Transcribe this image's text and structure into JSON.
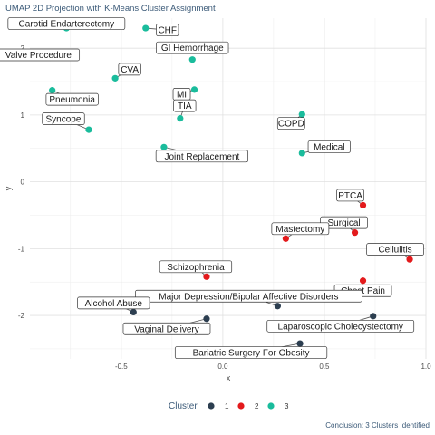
{
  "chart_data": {
    "type": "scatter",
    "title": "UMAP 2D Projection with K-Means Cluster Assignment",
    "xlabel": "x",
    "ylabel": "y",
    "xlim": [
      -0.95,
      1.0
    ],
    "ylim": [
      -2.65,
      2.45
    ],
    "x_ticks": [
      -0.5,
      0.0,
      0.5,
      1.0
    ],
    "y_ticks": [
      -2,
      -1,
      0,
      1,
      2
    ],
    "x_tick_labels": [
      "-0.5",
      "0.0",
      "0.5",
      "1.0"
    ],
    "y_tick_labels": [
      "-2",
      "-1",
      "0",
      "1",
      "2"
    ],
    "grid": true,
    "legend": {
      "title": "Cluster",
      "position": "bottom",
      "entries": [
        {
          "label": "1",
          "color": "#2c3e50"
        },
        {
          "label": "2",
          "color": "#e31a1c"
        },
        {
          "label": "3",
          "color": "#1abc9c"
        }
      ]
    },
    "points": [
      {
        "label": "Carotid Endarterectomy",
        "x": -0.77,
        "y": 2.3,
        "cluster": "3"
      },
      {
        "label": "CHF",
        "x": -0.38,
        "y": 2.3,
        "cluster": "3"
      },
      {
        "label": "Valve Procedure",
        "x": -0.85,
        "y": 1.86,
        "cluster": "3"
      },
      {
        "label": "GI Hemorrhage",
        "x": -0.15,
        "y": 1.83,
        "cluster": "3"
      },
      {
        "label": "CVA",
        "x": -0.53,
        "y": 1.55,
        "cluster": "3"
      },
      {
        "label": "Pneumonia",
        "x": -0.84,
        "y": 1.37,
        "cluster": "3"
      },
      {
        "label": "MI",
        "x": -0.14,
        "y": 1.38,
        "cluster": "3"
      },
      {
        "label": "Syncope",
        "x": -0.66,
        "y": 0.78,
        "cluster": "3"
      },
      {
        "label": "TIA",
        "x": -0.21,
        "y": 0.95,
        "cluster": "3"
      },
      {
        "label": "COPD",
        "x": 0.39,
        "y": 1.01,
        "cluster": "3"
      },
      {
        "label": "Joint Replacement",
        "x": -0.29,
        "y": 0.52,
        "cluster": "3"
      },
      {
        "label": "Medical",
        "x": 0.39,
        "y": 0.43,
        "cluster": "3"
      },
      {
        "label": "PTCA",
        "x": 0.69,
        "y": -0.35,
        "cluster": "2"
      },
      {
        "label": "Surgical",
        "x": 0.65,
        "y": -0.76,
        "cluster": "2"
      },
      {
        "label": "Mastectomy",
        "x": 0.31,
        "y": -0.85,
        "cluster": "2"
      },
      {
        "label": "Cellulitis",
        "x": 0.92,
        "y": -1.16,
        "cluster": "2"
      },
      {
        "label": "Schizophrenia",
        "x": -0.08,
        "y": -1.42,
        "cluster": "2"
      },
      {
        "label": "Chest Pain",
        "x": 0.69,
        "y": -1.48,
        "cluster": "2"
      },
      {
        "label": "Major Depression/Bipolar Affective Disorders",
        "x": 0.27,
        "y": -1.86,
        "cluster": "1"
      },
      {
        "label": "Alcohol Abuse",
        "x": -0.44,
        "y": -1.95,
        "cluster": "1"
      },
      {
        "label": "Laparoscopic Cholecystectomy",
        "x": 0.74,
        "y": -2.01,
        "cluster": "1"
      },
      {
        "label": "Vaginal Delivery",
        "x": -0.08,
        "y": -2.05,
        "cluster": "1"
      },
      {
        "label": "Bariatric Surgery For Obesity",
        "x": 0.38,
        "y": -2.42,
        "cluster": "1"
      }
    ]
  },
  "caption": "Conclusion: 3 Clusters Identified"
}
